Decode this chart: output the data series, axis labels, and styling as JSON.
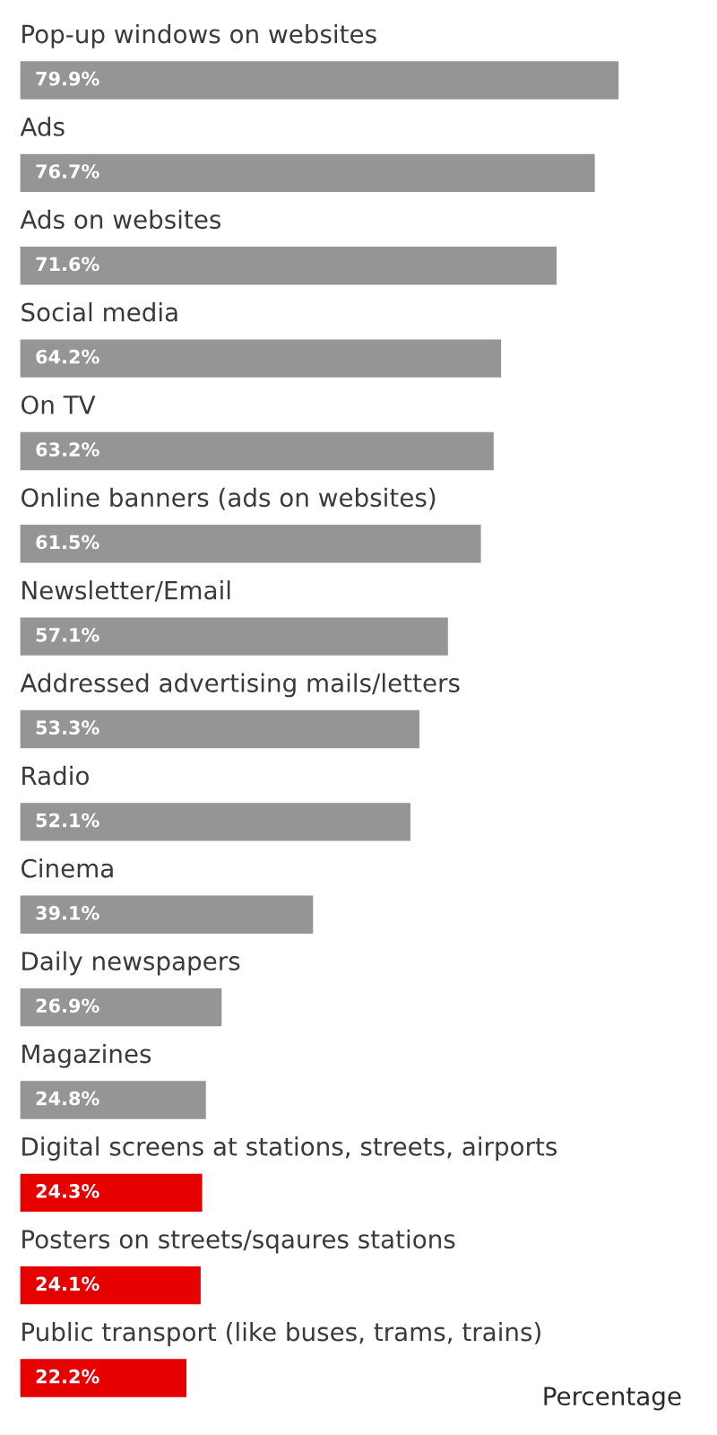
{
  "chart_data": {
    "type": "bar",
    "orientation": "horizontal",
    "xlabel": "Percentage",
    "categories": [
      "Pop-up windows on websites",
      "Ads",
      "Ads on websites",
      "Social media",
      "On TV",
      "Online banners (ads on websites)",
      "Newsletter/Email",
      "Addressed advertising mails/letters",
      "Radio",
      "Cinema",
      "Daily newspapers",
      "Magazines",
      "Digital screens at stations, streets, airports",
      "Posters on streets/sqaures stations",
      "Public transport (like buses, trams, trains)"
    ],
    "values": [
      79.9,
      76.7,
      71.6,
      64.2,
      63.2,
      61.5,
      57.1,
      53.3,
      52.1,
      39.1,
      26.9,
      24.8,
      24.3,
      24.1,
      22.2
    ],
    "value_labels": [
      "79.9%",
      "76.7%",
      "71.6%",
      "64.2%",
      "63.2%",
      "61.5%",
      "57.1%",
      "53.3%",
      "52.1%",
      "39.1%",
      "26.9%",
      "24.8%",
      "24.3%",
      "24.1%",
      "22.2%"
    ],
    "colors": [
      "#959595",
      "#959595",
      "#959595",
      "#959595",
      "#959595",
      "#959595",
      "#959595",
      "#959595",
      "#959595",
      "#959595",
      "#959595",
      "#959595",
      "#e60000",
      "#e60000",
      "#e60000"
    ],
    "tick_labels": "y"
  }
}
